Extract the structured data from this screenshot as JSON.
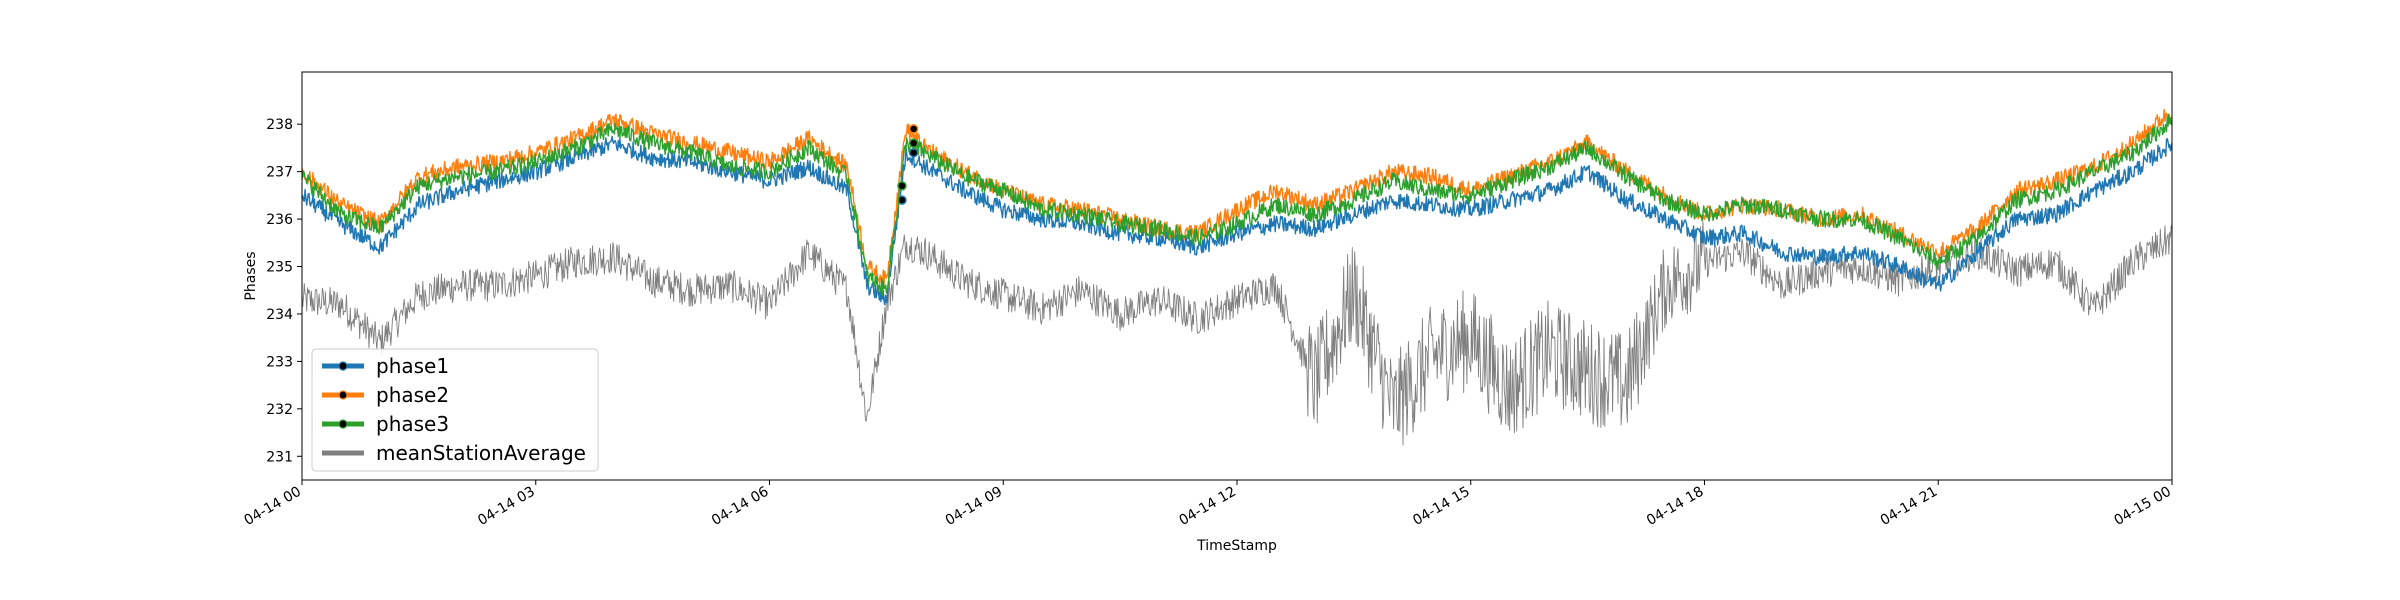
{
  "chart_data": {
    "type": "line",
    "title": "",
    "xlabel": "TimeStamp",
    "ylabel": "Phases",
    "xlim": [
      "04-14 00:00",
      "04-15 00:00"
    ],
    "ylim": [
      230.5,
      239.1
    ],
    "x_ticks": [
      "04-14 00",
      "04-14 03",
      "04-14 06",
      "04-14 09",
      "04-14 12",
      "04-14 15",
      "04-14 18",
      "04-14 21",
      "04-15 00"
    ],
    "x_tick_hours": [
      0,
      3,
      6,
      9,
      12,
      15,
      18,
      21,
      24
    ],
    "y_ticks": [
      231,
      232,
      233,
      234,
      235,
      236,
      237,
      238
    ],
    "grid": false,
    "legend_position": "lower-left",
    "x_hours": [
      0,
      0.5,
      1,
      1.5,
      2,
      2.5,
      3,
      3.5,
      4,
      4.5,
      5,
      5.5,
      6,
      6.5,
      7,
      7.25,
      7.5,
      7.75,
      8,
      8.5,
      9,
      9.5,
      10,
      10.5,
      11,
      11.5,
      12,
      12.5,
      13,
      13.5,
      14,
      14.5,
      15,
      15.5,
      16,
      16.5,
      17,
      17.5,
      18,
      18.5,
      19,
      19.5,
      20,
      20.5,
      21,
      21.5,
      22,
      22.5,
      23,
      23.5,
      24
    ],
    "series": [
      {
        "name": "phase1",
        "color": "#1f77b4",
        "values": [
          236.5,
          235.9,
          235.4,
          236.3,
          236.6,
          236.8,
          237.0,
          237.3,
          237.6,
          237.3,
          237.2,
          237.0,
          236.8,
          237.1,
          236.6,
          234.6,
          234.3,
          237.4,
          237.1,
          236.6,
          236.2,
          236.0,
          235.9,
          235.7,
          235.6,
          235.4,
          235.7,
          235.9,
          235.8,
          236.1,
          236.4,
          236.3,
          236.2,
          236.4,
          236.6,
          237.0,
          236.4,
          236.0,
          235.6,
          235.7,
          235.3,
          235.2,
          235.3,
          235.0,
          234.6,
          235.3,
          236.0,
          236.1,
          236.6,
          237.0,
          237.6
        ],
        "markers": [
          {
            "x": 7.7,
            "y": 236.4
          },
          {
            "x": 7.85,
            "y": 237.4
          }
        ]
      },
      {
        "name": "phase2",
        "color": "#ff7f0e",
        "values": [
          237.0,
          236.3,
          235.9,
          236.9,
          237.1,
          237.2,
          237.4,
          237.7,
          238.1,
          237.8,
          237.6,
          237.4,
          237.2,
          237.7,
          237.1,
          235.0,
          234.7,
          237.9,
          237.5,
          237.0,
          236.6,
          236.3,
          236.2,
          236.0,
          235.8,
          235.7,
          236.2,
          236.6,
          236.3,
          236.6,
          237.0,
          236.9,
          236.6,
          236.9,
          237.2,
          237.6,
          237.0,
          236.5,
          236.1,
          236.3,
          236.2,
          236.0,
          236.1,
          235.7,
          235.3,
          235.8,
          236.6,
          236.8,
          237.1,
          237.6,
          238.3
        ],
        "markers": [
          {
            "x": 7.85,
            "y": 237.9
          }
        ]
      },
      {
        "name": "phase3",
        "color": "#2ca02c",
        "values": [
          236.9,
          236.1,
          235.8,
          236.7,
          236.9,
          237.0,
          237.2,
          237.5,
          237.9,
          237.6,
          237.4,
          237.1,
          237.0,
          237.5,
          236.9,
          234.8,
          234.5,
          237.6,
          237.4,
          236.9,
          236.6,
          236.2,
          236.1,
          235.9,
          235.8,
          235.6,
          235.9,
          236.3,
          236.1,
          236.4,
          236.8,
          236.6,
          236.5,
          236.8,
          237.1,
          237.5,
          236.9,
          236.4,
          236.1,
          236.3,
          236.2,
          236.0,
          236.0,
          235.6,
          235.1,
          235.6,
          236.4,
          236.6,
          237.0,
          237.4,
          238.1
        ],
        "markers": [
          {
            "x": 7.7,
            "y": 236.7
          },
          {
            "x": 7.85,
            "y": 237.6
          }
        ]
      },
      {
        "name": "meanStationAverage",
        "color": "#7f7f7f",
        "values": [
          234.3,
          234.2,
          233.4,
          234.4,
          234.6,
          234.6,
          234.8,
          235.1,
          235.2,
          234.7,
          234.5,
          234.6,
          234.2,
          235.3,
          234.5,
          231.8,
          234.2,
          235.5,
          235.3,
          234.7,
          234.4,
          234.1,
          234.5,
          234.0,
          234.3,
          233.9,
          234.3,
          234.6,
          232.5,
          234.5,
          232.0,
          233.1,
          233.5,
          232.4,
          233.2,
          232.8,
          232.5,
          234.6,
          235.1,
          235.3,
          234.6,
          234.9,
          235.0,
          234.7,
          235.0,
          235.3,
          234.9,
          235.1,
          234.1,
          235.1,
          235.6
        ]
      }
    ]
  }
}
